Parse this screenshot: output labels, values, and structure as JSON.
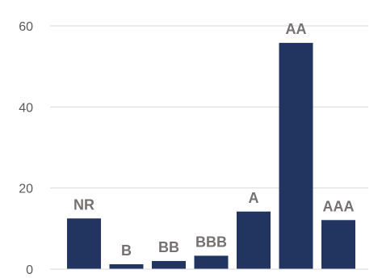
{
  "chart_data": {
    "type": "bar",
    "categories": [
      "NR",
      "B",
      "BB",
      "BBB",
      "A",
      "AA",
      "AAA"
    ],
    "values": [
      12.5,
      1.2,
      2.0,
      3.3,
      14.2,
      55.8,
      12.1
    ],
    "data_labels": [
      "NR",
      "B",
      "BB",
      "BBB",
      "A",
      "AA",
      "AAA"
    ],
    "ylim": [
      0,
      60
    ],
    "yticks": [
      0,
      20,
      40,
      60
    ],
    "ytick_labels": [
      "0",
      "20",
      "40",
      "60"
    ],
    "grid": true,
    "legend": "none",
    "title": "",
    "xlabel": "",
    "ylabel": "",
    "colors": {
      "bar": "#213560",
      "grid": "#d9d9d9",
      "tick_text": "#595959",
      "label_text": "#767171"
    }
  }
}
